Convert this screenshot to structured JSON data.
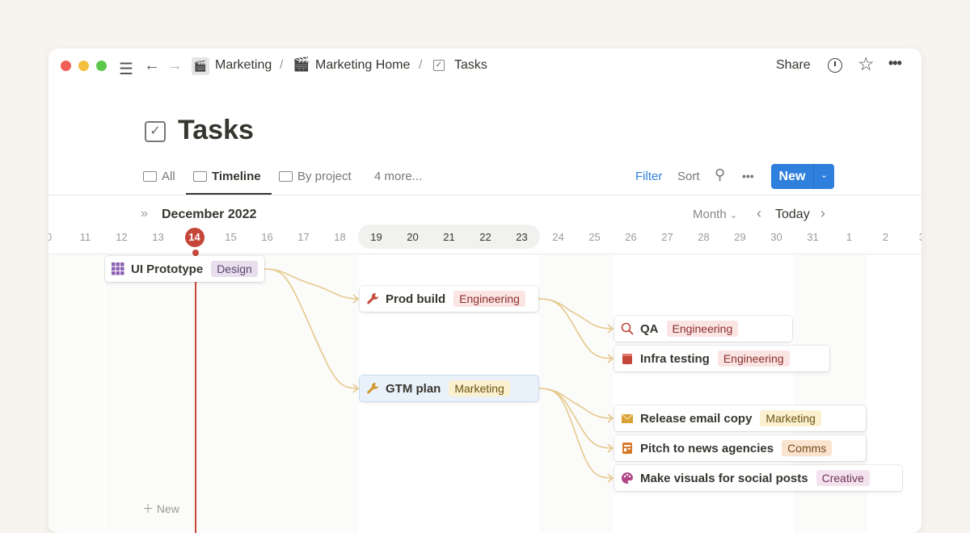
{
  "topbar": {
    "breadcrumb": [
      "Marketing",
      "Marketing Home",
      "Tasks"
    ],
    "share": "Share",
    "separator": "/"
  },
  "page": {
    "title": "Tasks"
  },
  "views": {
    "tabs": [
      {
        "label": "All",
        "icon": "table-icon"
      },
      {
        "label": "Timeline",
        "icon": "timeline-icon",
        "active": true
      },
      {
        "label": "By project",
        "icon": "table-icon"
      },
      {
        "label": "4 more..."
      }
    ],
    "filter": "Filter",
    "sort": "Sort",
    "new": "New"
  },
  "timeline": {
    "month": "December 2022",
    "scale": "Month",
    "today_label": "Today",
    "today": "14",
    "days": [
      "0",
      "11",
      "12",
      "13",
      "14",
      "15",
      "16",
      "17",
      "18",
      "19",
      "20",
      "21",
      "22",
      "23",
      "24",
      "25",
      "26",
      "27",
      "28",
      "29",
      "30",
      "31",
      "1",
      "2",
      "3"
    ],
    "add_new": "New",
    "tasks": [
      {
        "name": "UI Prototype",
        "tag": "Design",
        "tag_bg": "#e8deee",
        "tag_fg": "#5a4770",
        "icon": "grid-icon"
      },
      {
        "name": "Prod build",
        "tag": "Engineering",
        "tag_bg": "#fbe4e4",
        "tag_fg": "#8a2f2a",
        "icon": "wrench-icon"
      },
      {
        "name": "QA",
        "tag": "Engineering",
        "tag_bg": "#fbe4e4",
        "tag_fg": "#8a2f2a",
        "icon": "magnifier-icon"
      },
      {
        "name": "Infra testing",
        "tag": "Engineering",
        "tag_bg": "#fbe4e4",
        "tag_fg": "#8a2f2a",
        "icon": "block-icon"
      },
      {
        "name": "GTM plan",
        "tag": "Marketing",
        "tag_bg": "#fbf0cf",
        "tag_fg": "#6b5414",
        "icon": "wrench-icon"
      },
      {
        "name": "Release email copy",
        "tag": "Marketing",
        "tag_bg": "#fbf0cf",
        "tag_fg": "#6b5414",
        "icon": "envelope-icon"
      },
      {
        "name": "Pitch to news agencies",
        "tag": "Comms",
        "tag_bg": "#fae3cf",
        "tag_fg": "#7a4a1e",
        "icon": "newspaper-icon"
      },
      {
        "name": "Make visuals for social posts",
        "tag": "Creative",
        "tag_bg": "#f4e3ee",
        "tag_fg": "#6e3456",
        "icon": "palette-icon"
      }
    ],
    "dependencies": [
      [
        0,
        1
      ],
      [
        0,
        4
      ],
      [
        1,
        2
      ],
      [
        1,
        3
      ],
      [
        4,
        5
      ],
      [
        4,
        6
      ],
      [
        4,
        7
      ]
    ]
  },
  "colors": {
    "accent": "#2f7fdc",
    "today": "#c4473a",
    "connector": "#e5c98c"
  }
}
